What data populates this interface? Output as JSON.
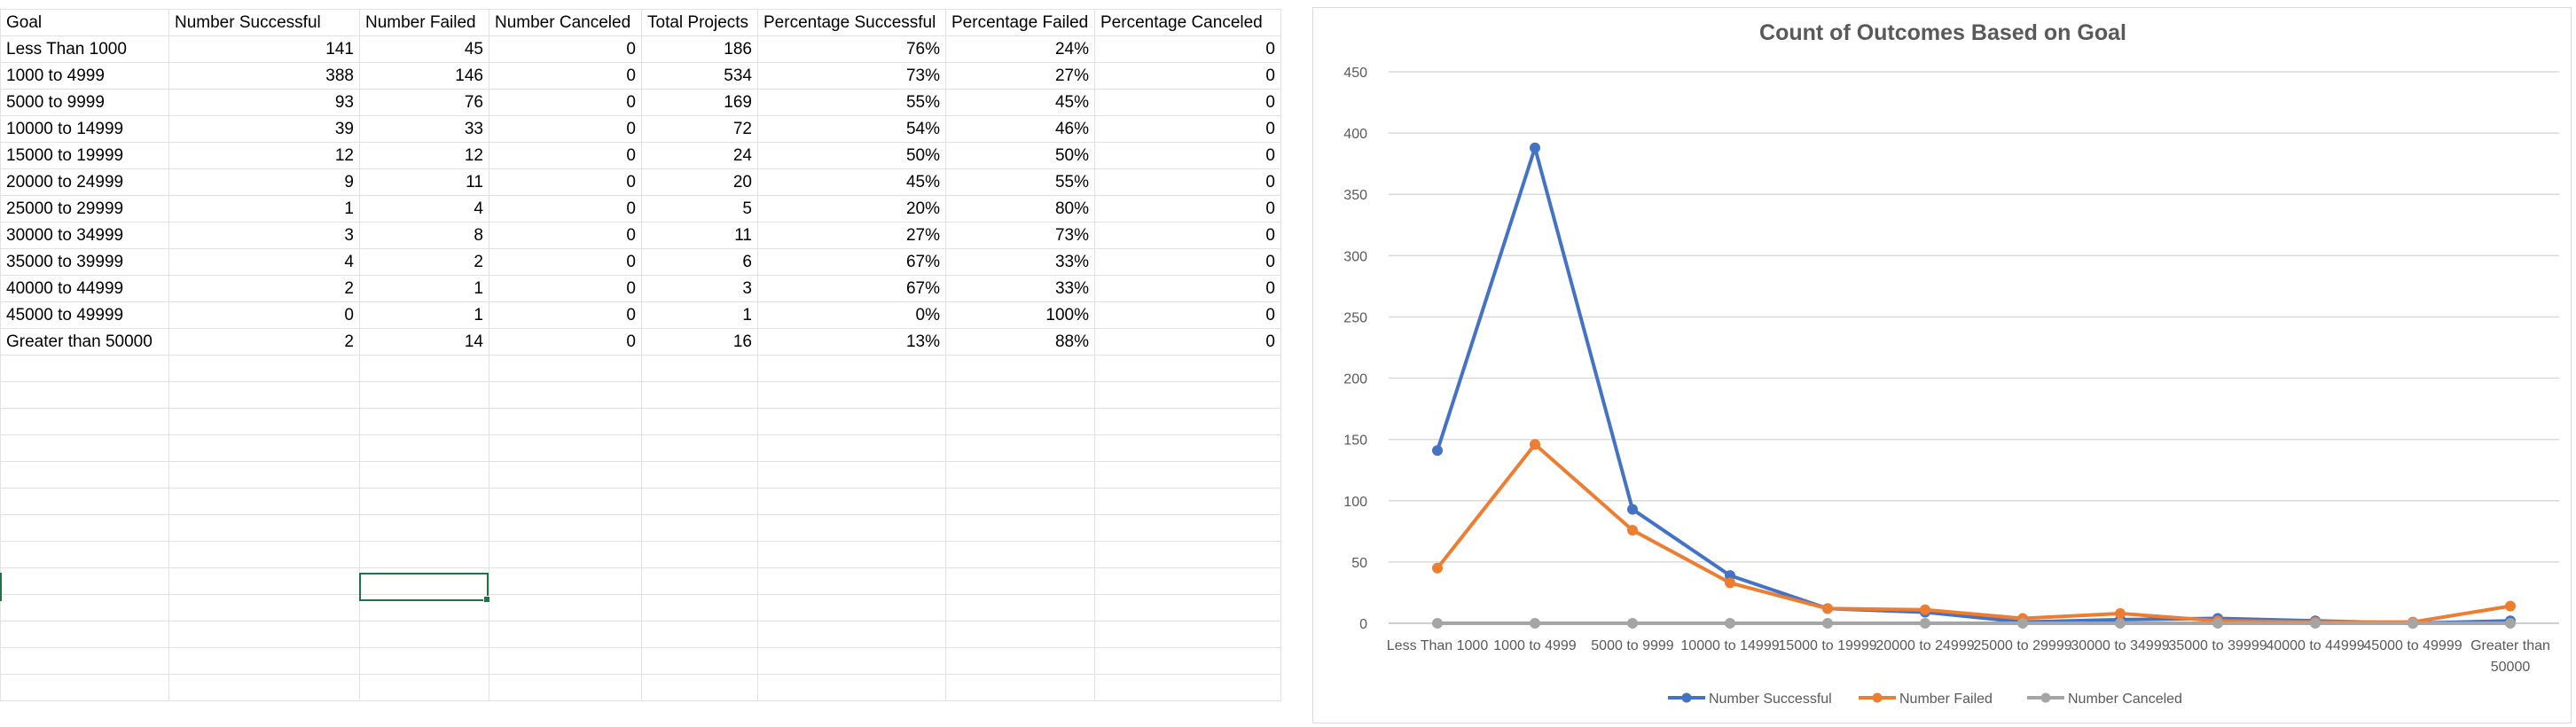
{
  "spreadsheet": {
    "headers": [
      "Goal",
      "Number Successful",
      "Number Failed",
      "Number Canceled",
      "Total Projects",
      "Percentage Successful",
      "Percentage Failed",
      "Percentage Canceled"
    ],
    "rows": [
      [
        "Less Than 1000",
        "141",
        "45",
        "0",
        "186",
        "76%",
        "24%",
        "0"
      ],
      [
        "1000 to 4999",
        "388",
        "146",
        "0",
        "534",
        "73%",
        "27%",
        "0"
      ],
      [
        "5000 to 9999",
        "93",
        "76",
        "0",
        "169",
        "55%",
        "45%",
        "0"
      ],
      [
        "10000 to 14999",
        "39",
        "33",
        "0",
        "72",
        "54%",
        "46%",
        "0"
      ],
      [
        "15000 to 19999",
        "12",
        "12",
        "0",
        "24",
        "50%",
        "50%",
        "0"
      ],
      [
        "20000 to 24999",
        "9",
        "11",
        "0",
        "20",
        "45%",
        "55%",
        "0"
      ],
      [
        "25000 to 29999",
        "1",
        "4",
        "0",
        "5",
        "20%",
        "80%",
        "0"
      ],
      [
        "30000 to 34999",
        "3",
        "8",
        "0",
        "11",
        "27%",
        "73%",
        "0"
      ],
      [
        "35000 to 39999",
        "4",
        "2",
        "0",
        "6",
        "67%",
        "33%",
        "0"
      ],
      [
        "40000 to 44999",
        "2",
        "1",
        "0",
        "3",
        "67%",
        "33%",
        "0"
      ],
      [
        "45000 to 49999",
        "0",
        "1",
        "0",
        "1",
        "0%",
        "100%",
        "0"
      ],
      [
        "Greater than 50000",
        "2",
        "14",
        "0",
        "16",
        "13%",
        "88%",
        "0"
      ]
    ]
  },
  "chart_data": {
    "type": "line",
    "title": "Count of Outcomes Based on Goal",
    "categories": [
      "Less Than 1000",
      "1000 to 4999",
      "5000 to 9999",
      "10000 to 14999",
      "15000 to 19999",
      "20000 to 24999",
      "25000 to 29999",
      "30000 to 34999",
      "35000 to 39999",
      "40000 to 44999",
      "45000 to 49999",
      "Greater than 50000"
    ],
    "series": [
      {
        "name": "Number Successful",
        "color": "#4472c4",
        "values": [
          141,
          388,
          93,
          39,
          12,
          9,
          1,
          3,
          4,
          2,
          0,
          2
        ]
      },
      {
        "name": "Number Failed",
        "color": "#ed7d31",
        "values": [
          45,
          146,
          76,
          33,
          12,
          11,
          4,
          8,
          2,
          1,
          1,
          14
        ]
      },
      {
        "name": "Number Canceled",
        "color": "#a5a5a5",
        "values": [
          0,
          0,
          0,
          0,
          0,
          0,
          0,
          0,
          0,
          0,
          0,
          0
        ]
      }
    ],
    "ylim": [
      0,
      450
    ],
    "yticks": [
      0,
      50,
      100,
      150,
      200,
      250,
      300,
      350,
      400,
      450
    ],
    "grid": true,
    "legend": "bottom",
    "xlabel": "",
    "ylabel": ""
  },
  "colors": {
    "selection": "#217346",
    "gridline": "#e1e1e1",
    "chart_gridline": "#d9d9d9",
    "axis_text": "#595959"
  }
}
